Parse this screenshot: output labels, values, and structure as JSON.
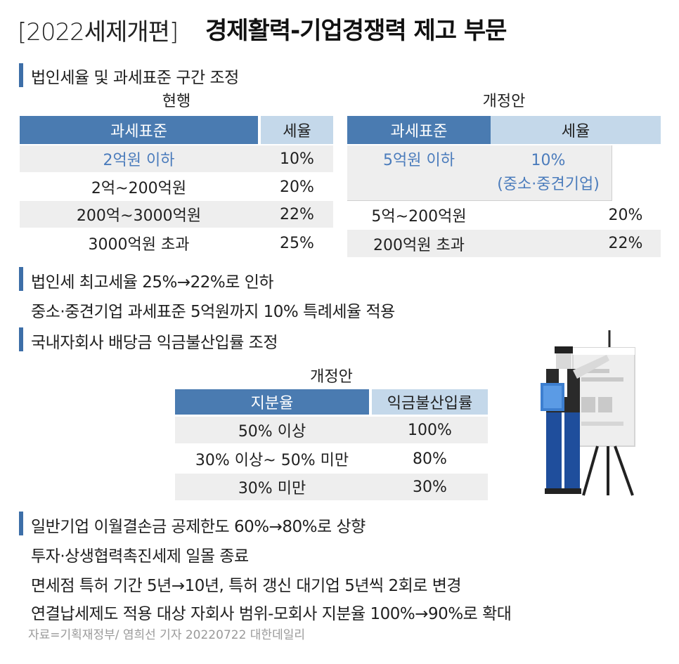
{
  "title": {
    "bracket": "[2022세제개편]",
    "main": "경제활력-기업경쟁력 제고 부문"
  },
  "section1": {
    "heading": "법인세율 및 과세표준 구간 조정",
    "current": {
      "caption": "현행",
      "headers": [
        "과세표준",
        "세율"
      ],
      "rows": [
        [
          "2억원 이하",
          "10%"
        ],
        [
          "2억~200억원",
          "20%"
        ],
        [
          "200억~3000억원",
          "22%"
        ],
        [
          "3000억원 초과",
          "25%"
        ]
      ]
    },
    "proposed": {
      "caption": "개정안",
      "headers": [
        "과세표준",
        "세율"
      ],
      "merged_row": {
        "base": "5억원 이하",
        "rate_line1": "10%",
        "rate_line2": "(중소·중견기업)"
      },
      "rows": [
        [
          "5억~200억원",
          "20%"
        ],
        [
          "200억원 초과",
          "22%"
        ]
      ]
    }
  },
  "bullets1": [
    "법인세 최고세율 25%→22%로 인하",
    "중소·중견기업 과세표준 5억원까지 10% 특례세율 적용"
  ],
  "section2": {
    "heading": "국내자회사 배당금 익금불산입률 조정",
    "caption": "개정안",
    "headers": [
      "지분율",
      "익금불산입률"
    ],
    "rows": [
      [
        "50% 이상",
        "100%"
      ],
      [
        "30% 이상~ 50% 미만",
        "80%"
      ],
      [
        "30% 미만",
        "30%"
      ]
    ]
  },
  "bullets2": [
    "일반기업 이월결손금 공제한도 60%→80%로 상향",
    "투자·상생협력촉진세제 일몰 종료",
    "면세점 특허 기간 5년→10년, 특허 갱신 대기업 5년씩 2회로 변경",
    "연결납세제도 적용 대상 자회사 범위-모회사 지분율 100%→90%로 확대"
  ],
  "source": "자료=기획재정부/ 염희선 기자 20220722 대한데일리",
  "colors": {
    "accent": "#4a7bb1",
    "light_header": "#c4d8ea",
    "highlight_text": "#4b7cbc",
    "row_shade": "#eeeeee"
  },
  "illustration": "presenter-with-easel-icon"
}
